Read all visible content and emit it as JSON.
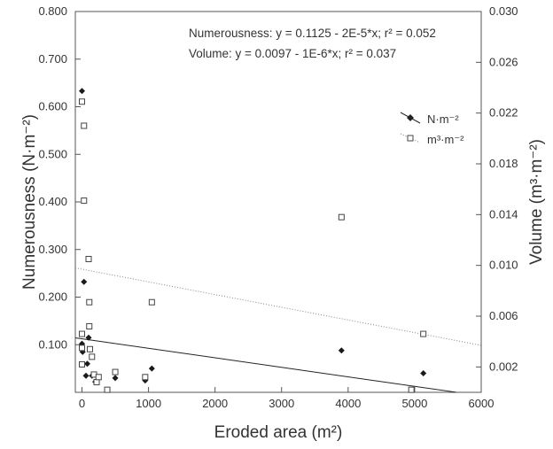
{
  "chart_data": {
    "type": "scatter",
    "xlabel": "Eroded area (m²)",
    "ylabel_left": "Numerousness (N·m⁻²)",
    "ylabel_right": "Volume (m³·m⁻²)",
    "xlim": [
      -100,
      6000
    ],
    "ylim_left": [
      0.0,
      0.8
    ],
    "ylim_right": [
      0.0,
      0.03
    ],
    "x_ticks": [
      "0",
      "1000",
      "2000",
      "3000",
      "4000",
      "5000",
      "6000"
    ],
    "y_left_ticks": [
      "0.100",
      "0.200",
      "0.300",
      "0.400",
      "0.500",
      "0.600",
      "0.700",
      "0.800"
    ],
    "y_right_ticks": [
      "0.002",
      "0.006",
      "0.010",
      "0.014",
      "0.018",
      "0.022",
      "0.026",
      "0.030"
    ],
    "annotations": [
      "Numerousness: y = 0.1125 - 2E-5*x; r² = 0.052",
      "Volume: y = 0.0097 - 1E-6*x; r² = 0.037"
    ],
    "legend_position": "upper-right",
    "grid": false,
    "series": [
      {
        "name": "N·m⁻²",
        "axis": "left",
        "marker": "filled-diamond",
        "line_style": "solid",
        "trend": {
          "intercept": 0.1125,
          "slope": -2e-05
        },
        "points": [
          [
            0,
            0.633
          ],
          [
            0,
            0.102
          ],
          [
            0,
            0.095
          ],
          [
            10,
            0.085
          ],
          [
            30,
            0.232
          ],
          [
            60,
            0.035
          ],
          [
            80,
            0.06
          ],
          [
            100,
            0.115
          ],
          [
            120,
            0.09
          ],
          [
            150,
            0.035
          ],
          [
            200,
            0.022
          ],
          [
            500,
            0.03
          ],
          [
            950,
            0.025
          ],
          [
            1050,
            0.05
          ],
          [
            3900,
            0.088
          ],
          [
            5130,
            0.04
          ]
        ]
      },
      {
        "name": "m³·m⁻²",
        "axis": "right",
        "marker": "open-square",
        "line_style": "dotted",
        "trend": {
          "intercept": 0.0097,
          "slope": -1e-06
        },
        "points": [
          [
            0,
            0.0229
          ],
          [
            30,
            0.021
          ],
          [
            30,
            0.0151
          ],
          [
            0,
            0.0046
          ],
          [
            0,
            0.0035
          ],
          [
            0,
            0.0022
          ],
          [
            100,
            0.0105
          ],
          [
            110,
            0.0071
          ],
          [
            110,
            0.0052
          ],
          [
            120,
            0.0034
          ],
          [
            150,
            0.0028
          ],
          [
            180,
            0.0014
          ],
          [
            220,
            0.0008
          ],
          [
            250,
            0.0012
          ],
          [
            380,
            0.0002
          ],
          [
            500,
            0.0016
          ],
          [
            950,
            0.0012
          ],
          [
            1050,
            0.0071
          ],
          [
            3900,
            0.0138
          ],
          [
            4950,
            0.0002
          ],
          [
            5130,
            0.0046
          ]
        ]
      }
    ]
  }
}
